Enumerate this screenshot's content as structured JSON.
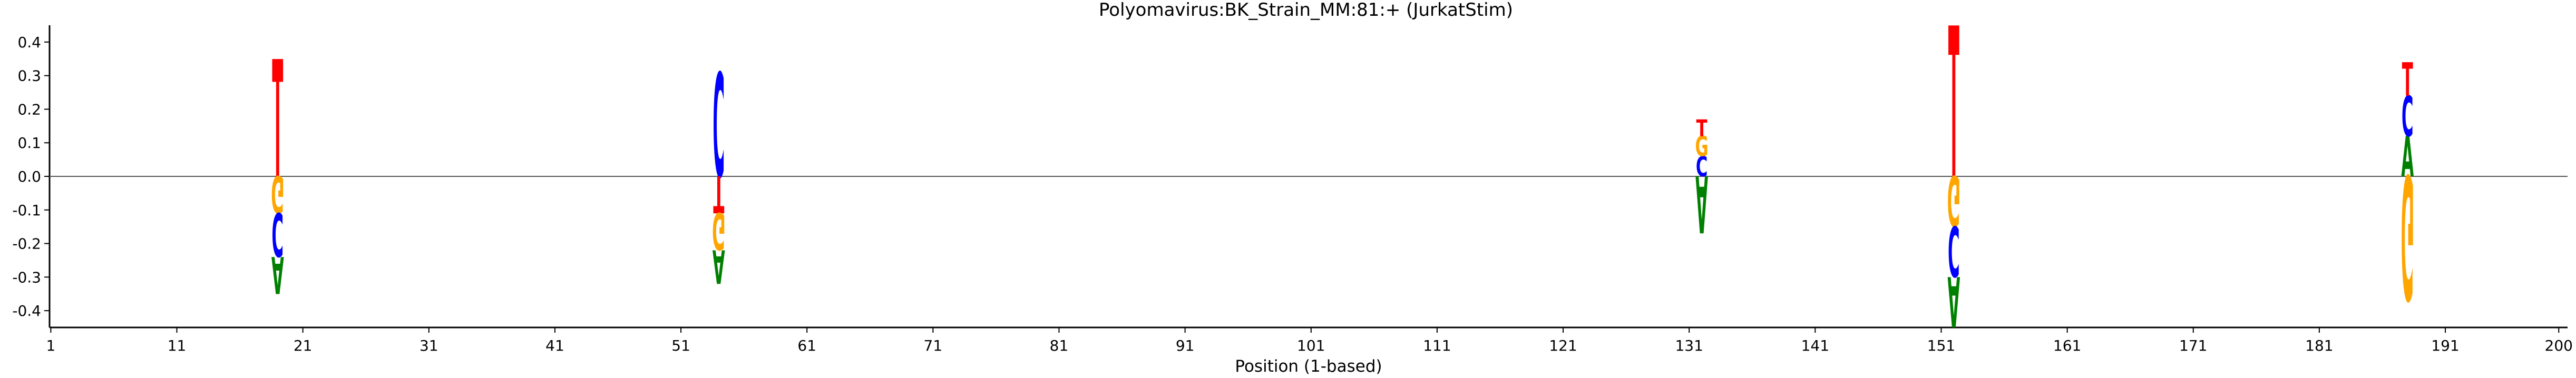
{
  "chart_data": {
    "type": "sequence-logo",
    "title": "Polyomavirus:BK_Strain_MM:81:+  (JurkatStim)",
    "xlabel": "Position (1-based)",
    "ylabel": "",
    "xlim": [
      1,
      200
    ],
    "ylim": [
      -0.45,
      0.45
    ],
    "x_ticks": [
      1,
      11,
      21,
      31,
      41,
      51,
      61,
      71,
      81,
      91,
      101,
      111,
      121,
      131,
      141,
      151,
      161,
      171,
      181,
      191,
      200
    ],
    "y_ticks": [
      -0.4,
      -0.3,
      -0.2,
      -0.1,
      0.0,
      0.1,
      0.2,
      0.3,
      0.4
    ],
    "zero_line": true,
    "grid": false,
    "colors": {
      "A": "#008000",
      "C": "#0000ff",
      "G": "#ffa500",
      "T": "#ff0000"
    },
    "positions": [
      {
        "x": 19,
        "up": [
          {
            "base": "T",
            "height": 0.35
          }
        ],
        "down": [
          {
            "base": "G",
            "height": 0.11
          },
          {
            "base": "C",
            "height": 0.13
          },
          {
            "base": "A",
            "height": 0.11
          }
        ]
      },
      {
        "x": 54,
        "up": [
          {
            "base": "C",
            "height": 0.31
          }
        ],
        "down": [
          {
            "base": "T",
            "height": 0.11
          },
          {
            "base": "G",
            "height": 0.11
          },
          {
            "base": "A",
            "height": 0.1
          }
        ]
      },
      {
        "x": 132,
        "up": [
          {
            "base": "C",
            "height": 0.06
          },
          {
            "base": "G",
            "height": 0.06
          },
          {
            "base": "T",
            "height": 0.05
          }
        ],
        "down": [
          {
            "base": "A",
            "height": 0.17
          }
        ]
      },
      {
        "x": 152,
        "up": [
          {
            "base": "T",
            "height": 0.45
          }
        ],
        "down": [
          {
            "base": "G",
            "height": 0.15
          },
          {
            "base": "C",
            "height": 0.15
          },
          {
            "base": "A",
            "height": 0.15
          }
        ]
      },
      {
        "x": 188,
        "up": [
          {
            "base": "A",
            "height": 0.12
          },
          {
            "base": "C",
            "height": 0.12
          },
          {
            "base": "T",
            "height": 0.1
          }
        ],
        "down": [
          {
            "base": "G",
            "height": 0.37
          }
        ]
      }
    ]
  }
}
